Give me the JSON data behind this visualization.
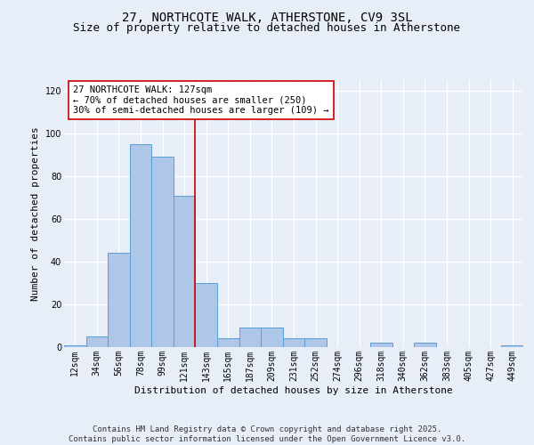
{
  "title_line1": "27, NORTHCOTE WALK, ATHERSTONE, CV9 3SL",
  "title_line2": "Size of property relative to detached houses in Atherstone",
  "xlabel": "Distribution of detached houses by size in Atherstone",
  "ylabel": "Number of detached properties",
  "categories": [
    "12sqm",
    "34sqm",
    "56sqm",
    "78sqm",
    "99sqm",
    "121sqm",
    "143sqm",
    "165sqm",
    "187sqm",
    "209sqm",
    "231sqm",
    "252sqm",
    "274sqm",
    "296sqm",
    "318sqm",
    "340sqm",
    "362sqm",
    "383sqm",
    "405sqm",
    "427sqm",
    "449sqm"
  ],
  "values": [
    1,
    5,
    44,
    95,
    89,
    71,
    30,
    4,
    9,
    9,
    4,
    4,
    0,
    0,
    2,
    0,
    2,
    0,
    0,
    0,
    1
  ],
  "bar_color": "#aec6e8",
  "bar_edge_color": "#5a9fd4",
  "vline_x": 5.5,
  "vline_color": "#cc0000",
  "annotation_text": "27 NORTHCOTE WALK: 127sqm\n← 70% of detached houses are smaller (250)\n30% of semi-detached houses are larger (109) →",
  "annotation_box_color": "#ffffff",
  "annotation_box_edge": "#cc0000",
  "ylim": [
    0,
    125
  ],
  "yticks": [
    0,
    20,
    40,
    60,
    80,
    100,
    120
  ],
  "background_color": "#e8eef7",
  "grid_color": "#ffffff",
  "footer_line1": "Contains HM Land Registry data © Crown copyright and database right 2025.",
  "footer_line2": "Contains public sector information licensed under the Open Government Licence v3.0.",
  "title_fontsize": 10,
  "subtitle_fontsize": 9,
  "axis_label_fontsize": 8,
  "tick_fontsize": 7,
  "annotation_fontsize": 7.5,
  "footer_fontsize": 6.5
}
